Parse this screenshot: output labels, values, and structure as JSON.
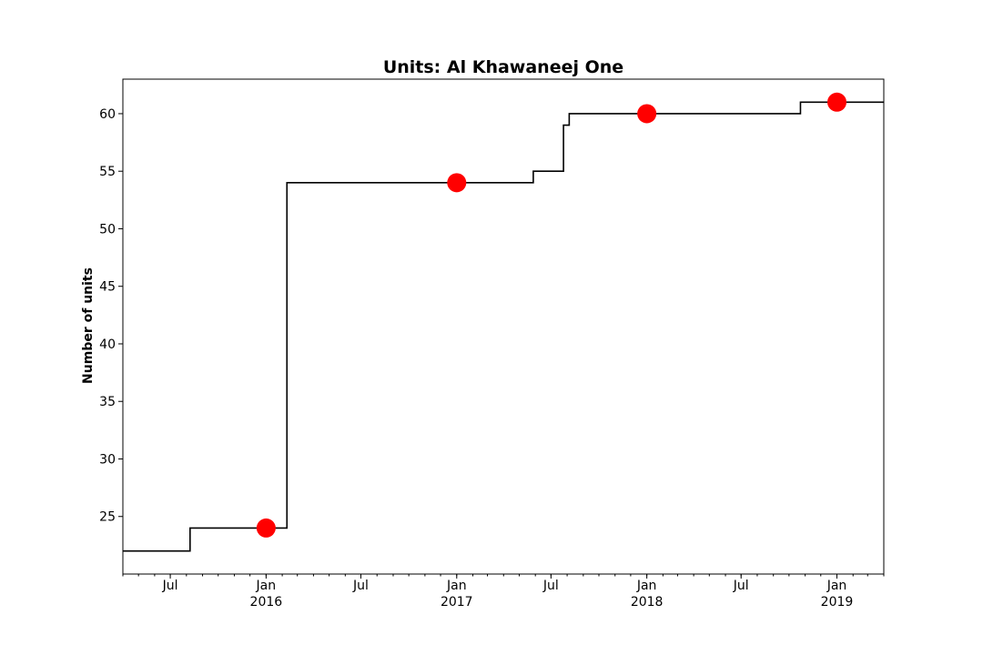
{
  "chart_data": {
    "type": "line",
    "title": "Units: Al Khawaneej One",
    "xlabel": "",
    "ylabel": "Number of units",
    "x_axis": {
      "kind": "date",
      "range": [
        "2015-04-01",
        "2019-04-01"
      ],
      "major_ticks": [
        {
          "date": "2015-07-01",
          "label": "Jul",
          "sublabel": ""
        },
        {
          "date": "2016-01-01",
          "label": "Jan",
          "sublabel": "2016"
        },
        {
          "date": "2016-07-01",
          "label": "Jul",
          "sublabel": ""
        },
        {
          "date": "2017-01-01",
          "label": "Jan",
          "sublabel": "2017"
        },
        {
          "date": "2017-07-01",
          "label": "Jul",
          "sublabel": ""
        },
        {
          "date": "2018-01-01",
          "label": "Jan",
          "sublabel": "2018"
        },
        {
          "date": "2018-07-01",
          "label": "Jul",
          "sublabel": ""
        },
        {
          "date": "2019-01-01",
          "label": "Jan",
          "sublabel": "2019"
        }
      ],
      "minor_ticks": "monthly"
    },
    "ylim": [
      20,
      63
    ],
    "yticks": [
      25,
      30,
      35,
      40,
      45,
      50,
      55,
      60
    ],
    "grid": false,
    "series": [
      {
        "style": "step",
        "color": "#000000",
        "points": [
          {
            "x": "2015-04-01",
            "y": 22
          },
          {
            "x": "2015-08-08",
            "y": 24
          },
          {
            "x": "2016-02-10",
            "y": 54
          },
          {
            "x": "2017-05-28",
            "y": 55
          },
          {
            "x": "2017-07-25",
            "y": 59
          },
          {
            "x": "2017-08-05",
            "y": 60
          },
          {
            "x": "2018-10-23",
            "y": 61
          },
          {
            "x": "2019-04-01",
            "y": 61
          }
        ]
      },
      {
        "style": "markers",
        "color": "#ff0000",
        "points": [
          {
            "x": "2016-01-01",
            "y": 24
          },
          {
            "x": "2017-01-01",
            "y": 54
          },
          {
            "x": "2018-01-01",
            "y": 60
          },
          {
            "x": "2019-01-01",
            "y": 61
          }
        ]
      }
    ]
  }
}
